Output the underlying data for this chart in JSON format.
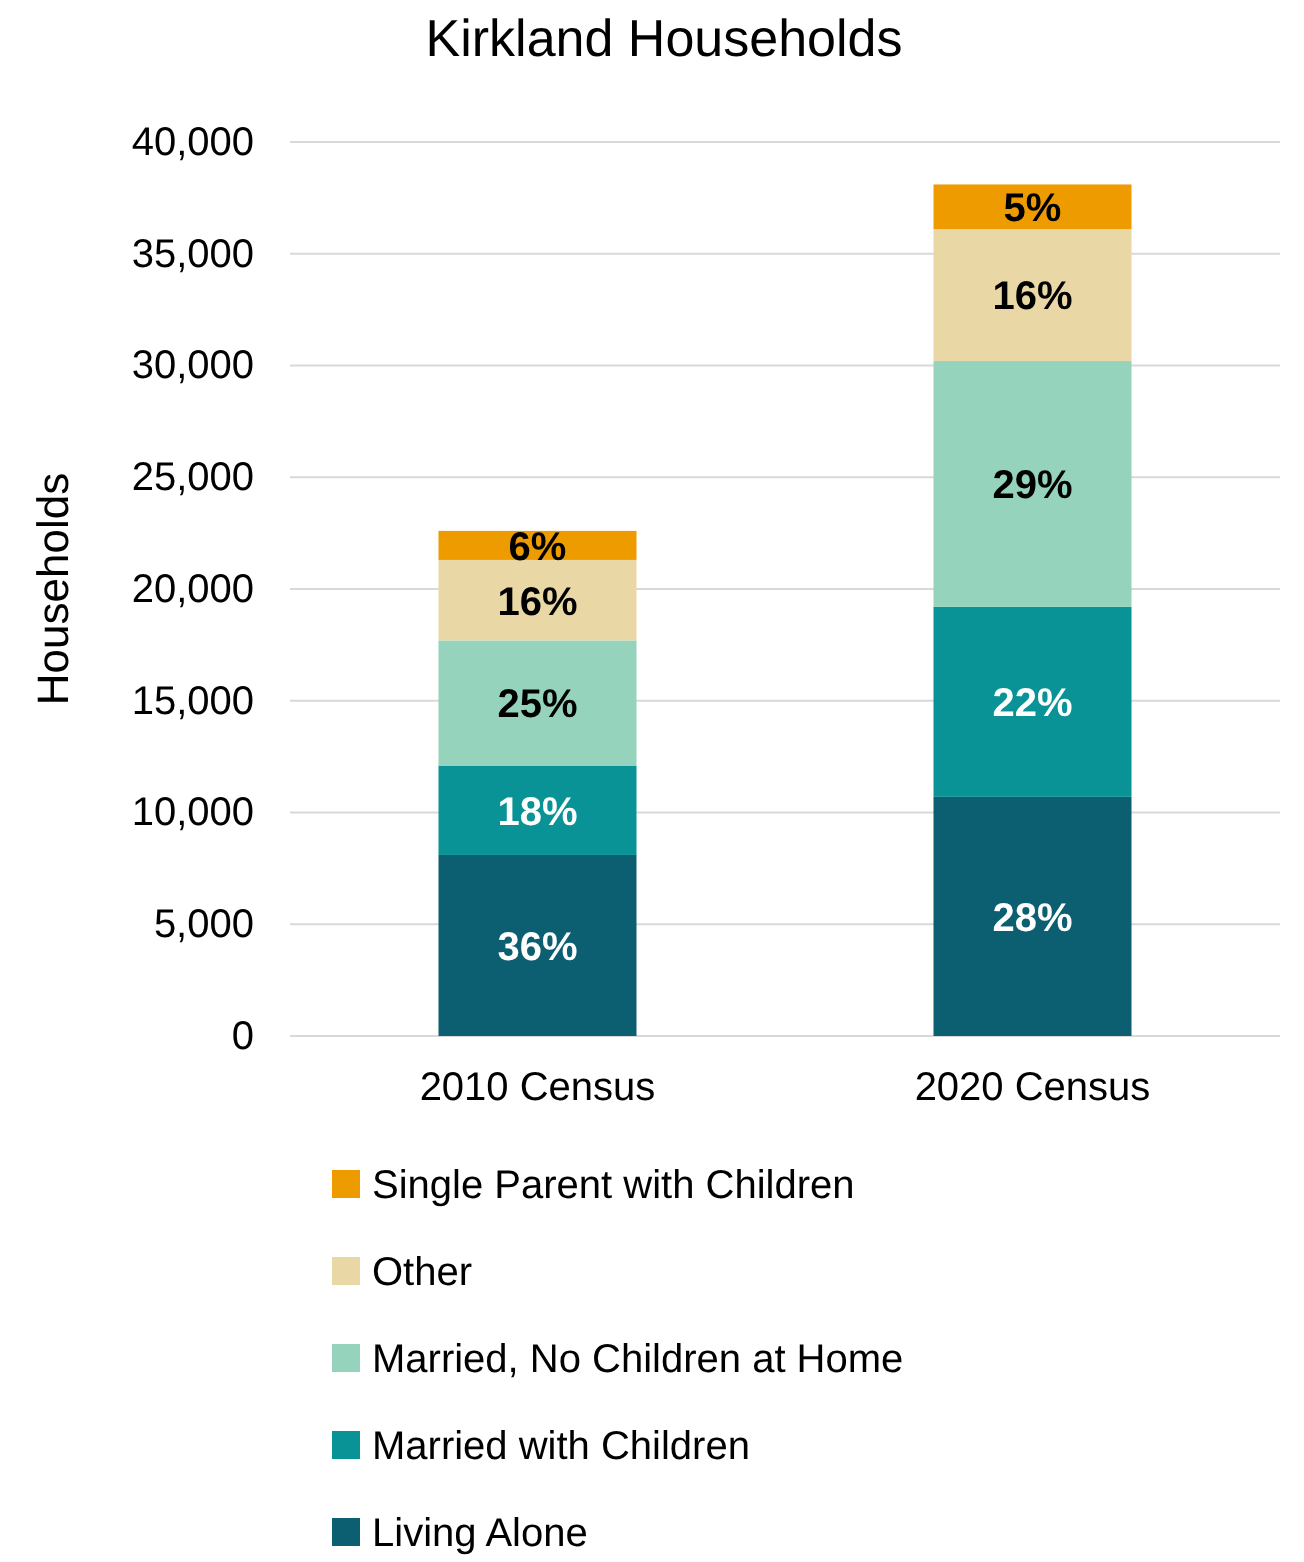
{
  "chart_data": {
    "type": "bar",
    "title": "Kirkland Households",
    "ylabel": "Households",
    "categories": [
      "2010 Census",
      "2020 Census"
    ],
    "stacked": true,
    "ylim": [
      0,
      40000
    ],
    "yticks": [
      {
        "value": 0,
        "label": "0"
      },
      {
        "value": 5000,
        "label": "5,000"
      },
      {
        "value": 10000,
        "label": "10,000"
      },
      {
        "value": 15000,
        "label": "15,000"
      },
      {
        "value": 20000,
        "label": "20,000"
      },
      {
        "value": 25000,
        "label": "25,000"
      },
      {
        "value": 30000,
        "label": "30,000"
      },
      {
        "value": 35000,
        "label": "35,000"
      },
      {
        "value": 40000,
        "label": "40,000"
      }
    ],
    "grid": "y",
    "legend": "bottom",
    "series": [
      {
        "name": "Living Alone",
        "color": "#0b5f71",
        "values": [
          8100,
          10700
        ]
      },
      {
        "name": "Married with Children",
        "color": "#0a9396",
        "values": [
          4000,
          8500
        ]
      },
      {
        "name": "Married, No Children at Home",
        "color": "#95d3bd",
        "values": [
          5600,
          11000
        ]
      },
      {
        "name": "Other",
        "color": "#e9d8a6",
        "values": [
          3600,
          5900
        ]
      },
      {
        "name": "Single Parent with Children",
        "color": "#ee9b00",
        "values": [
          1300,
          2000
        ]
      }
    ],
    "annotations": [
      "36%",
      "18%",
      "25%",
      "16%",
      "6%",
      "28%",
      "22%",
      "29%",
      "16%",
      "5%"
    ]
  }
}
